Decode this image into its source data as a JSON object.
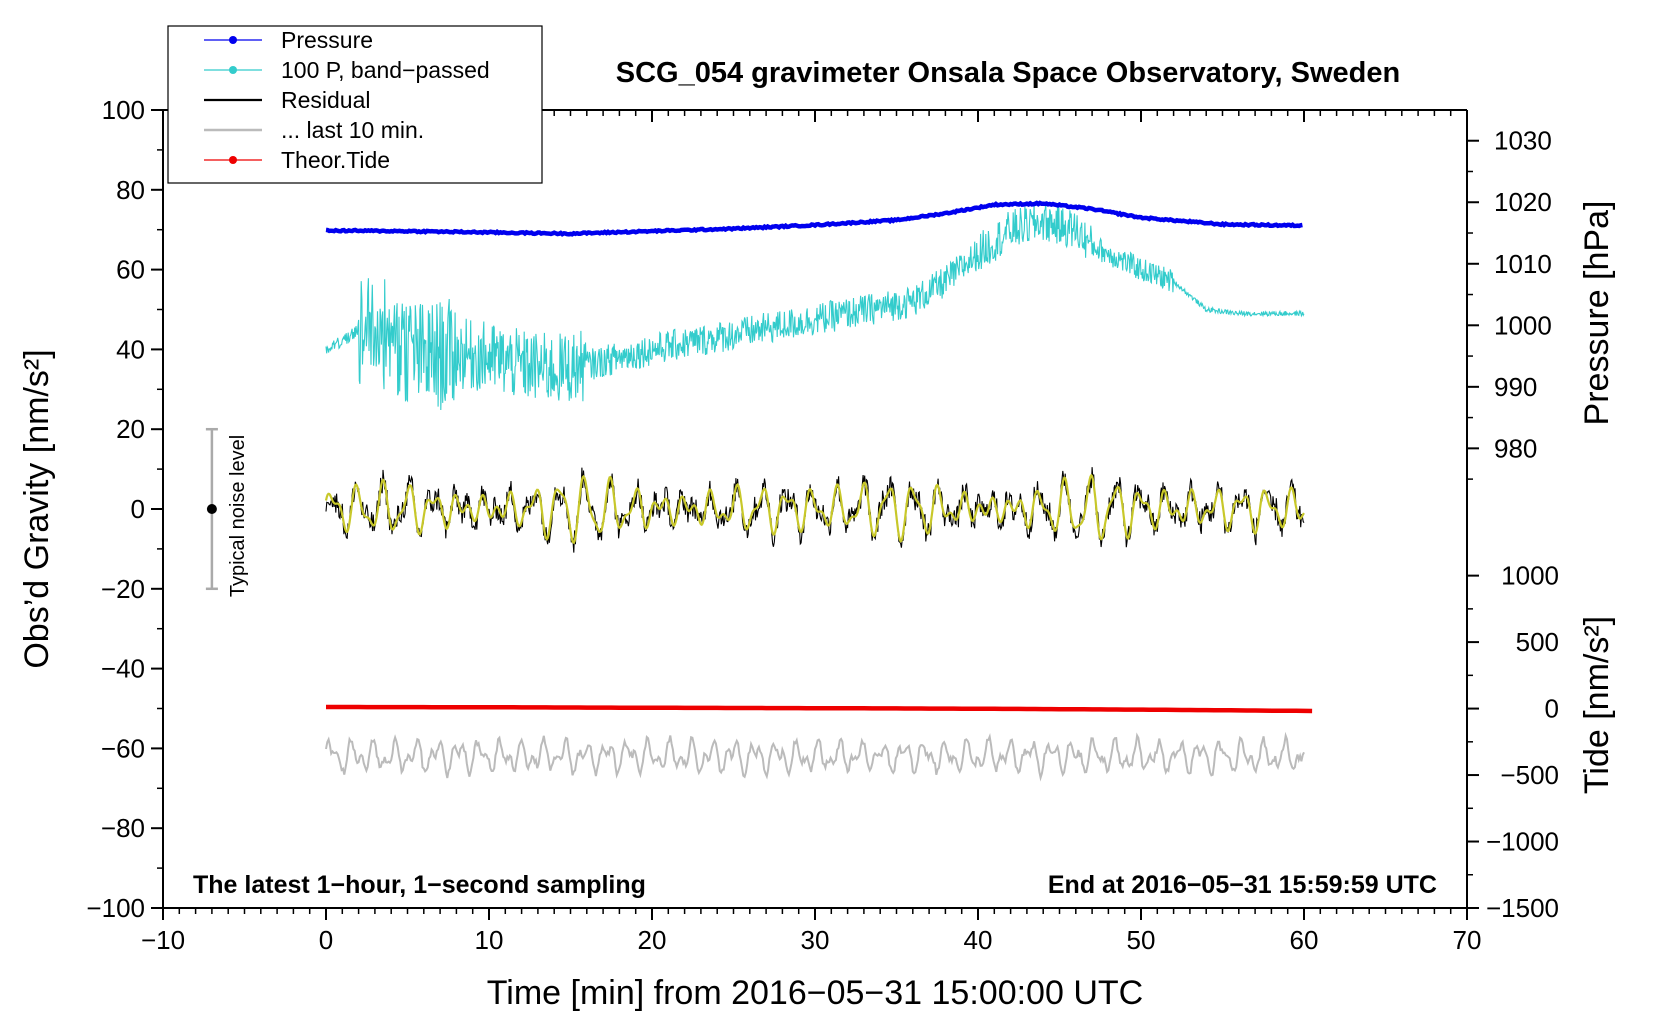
{
  "chart_data": {
    "type": "line",
    "title": "SCG_054 gravimeter Onsala Space Observatory, Sweden",
    "xlabel": "Time [min] from 2016−05−31 15:00:00 UTC",
    "ylabel_left": "Obs’d Gravity [nm/s²]",
    "ylabel_right_top": "Pressure [hPa]",
    "ylabel_right_bottom": "Tide [nm/s²]",
    "xlim": [
      -10,
      70
    ],
    "ylim_left": [
      -100,
      100
    ],
    "x_ticks": [
      -10,
      0,
      10,
      20,
      30,
      40,
      50,
      60,
      70
    ],
    "x_tick_labels": [
      "−10",
      "0",
      "10",
      "20",
      "30",
      "40",
      "50",
      "60",
      "70"
    ],
    "y_left_ticks": [
      100,
      80,
      60,
      40,
      20,
      0,
      -20,
      -40,
      -60,
      -80,
      -100
    ],
    "y_left_tick_labels": [
      "100",
      "80",
      "60",
      "40",
      "20",
      "0",
      "−20",
      "−40",
      "−60",
      "−80",
      "−100"
    ],
    "pressure_axis": {
      "ticks": [
        1030,
        1020,
        1010,
        1000,
        990,
        980
      ],
      "tick_labels": [
        "1030",
        "1020",
        "1010",
        "1000",
        "990",
        "980"
      ],
      "left_value_map": {
        "pressure": [
          980,
          1030
        ],
        "gravity": [
          15.2,
          92.3
        ]
      }
    },
    "tide_axis": {
      "ticks": [
        1000,
        500,
        0,
        -500,
        -1000,
        -1500
      ],
      "tick_labels": [
        "1000",
        "500",
        "0",
        "−500",
        "−1000",
        "−1500"
      ],
      "left_value_map": {
        "tide": [
          -1500,
          1000
        ],
        "gravity": [
          -100,
          -16.7
        ]
      }
    },
    "series": [
      {
        "name": "Pressure",
        "color": "#0000ee",
        "axis": "pressure",
        "x": [
          0,
          5,
          10,
          15,
          20,
          25,
          30,
          35,
          38,
          41,
          44,
          47,
          50,
          55,
          60
        ],
        "values": [
          1015.4,
          1015.3,
          1015.1,
          1014.9,
          1015.3,
          1015.7,
          1016.3,
          1017.1,
          1018.2,
          1019.6,
          1019.8,
          1018.9,
          1017.5,
          1016.4,
          1016.2
        ]
      },
      {
        "name": "100 P, band−passed",
        "color": "#33cccc",
        "axis": "gravity",
        "x": [
          0,
          1,
          2,
          3,
          4,
          6,
          8,
          10,
          12,
          14,
          16,
          18,
          20,
          24,
          28,
          32,
          36,
          38,
          40,
          42,
          44,
          46,
          47,
          50,
          52,
          54,
          56,
          58,
          60
        ],
        "values": [
          40,
          42,
          45,
          46,
          42,
          38,
          39,
          38,
          36,
          35,
          36,
          38,
          40,
          43,
          46,
          49,
          52,
          57,
          64,
          70,
          72,
          70,
          66,
          60,
          57,
          50,
          49,
          49,
          49
        ]
      },
      {
        "name": "Residual",
        "color": "#000000",
        "axis": "gravity",
        "x": [
          0,
          60
        ],
        "values": [
          0,
          0
        ]
      },
      {
        "name": "... last 10 min.",
        "color": "#bbbbbb",
        "axis": "gravity",
        "x": [
          0,
          60
        ],
        "values": [
          -62,
          -62
        ]
      },
      {
        "name": "Theor.Tide",
        "color": "#ee0000",
        "axis": "tide",
        "x": [
          0,
          10,
          20,
          30,
          40,
          50,
          60.5
        ],
        "values": [
          12,
          10,
          6,
          3,
          -1,
          -8,
          -18
        ]
      }
    ],
    "legend": [
      "Pressure",
      "100 P, band−passed",
      "Residual",
      "... last 10 min.",
      "Theor.Tide"
    ],
    "legend_location": "top-left",
    "annotations": {
      "left": "The latest 1−hour, 1−second sampling",
      "right": "End at 2016−05−31 15:59:59 UTC",
      "noise_label": "Typical noise level",
      "noise_bar": {
        "x": -7,
        "center": 0,
        "low": -20,
        "high": 20
      }
    }
  }
}
